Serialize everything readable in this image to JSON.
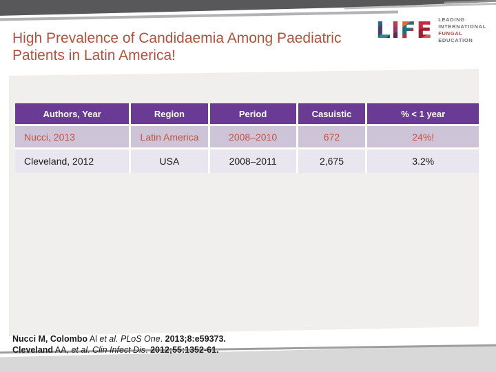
{
  "header": {
    "title": "High Prevalence of Candidaemia Among Paediatric Patients in Latin America!"
  },
  "logo": {
    "letters": [
      "L",
      "I",
      "F",
      "E"
    ],
    "tagline_lines": [
      "LEADING",
      "INTERNATIONAL",
      "FUNGAL",
      "EDUCATION"
    ]
  },
  "table": {
    "headers": [
      "Authors, Year",
      "Region",
      "Period",
      "Casuistic",
      "% < 1 year"
    ],
    "rows": [
      {
        "author_year": "Nucci, 2013",
        "region": "Latin America",
        "period": "2008–2010",
        "casuistic": "672",
        "pct_under_1": "24%!"
      },
      {
        "author_year": "Cleveland, 2012",
        "region": "USA",
        "period": "2008–2011",
        "casuistic": "2,675",
        "pct_under_1": "3.2%"
      }
    ]
  },
  "footnotes": {
    "line1": {
      "seg_bold_1": "Nucci M, Colombo",
      "seg_plain_1": " Al ",
      "seg_italic_1": "et al. PLoS One",
      "seg_plain_2": ". ",
      "seg_bold_2": "2013;8:e59373."
    },
    "line2": {
      "seg_bold_1": "Cleveland",
      "seg_plain_1": " AA, ",
      "seg_italic_1": "et al. Clin Infect Dis",
      "seg_plain_2": ". ",
      "seg_bold_2": "2012;55:1352-61."
    }
  },
  "colors": {
    "title_text": "#b2513c",
    "table_header_bg": "#6a3b94",
    "row_highlight_bg": "#cdc4d8",
    "row_highlight_text": "#c05540",
    "row_alt_bg": "#e9e6f0",
    "panel_bg": "#f0efee",
    "top_band": "#58585a",
    "fungal_red": "#b5443f"
  }
}
